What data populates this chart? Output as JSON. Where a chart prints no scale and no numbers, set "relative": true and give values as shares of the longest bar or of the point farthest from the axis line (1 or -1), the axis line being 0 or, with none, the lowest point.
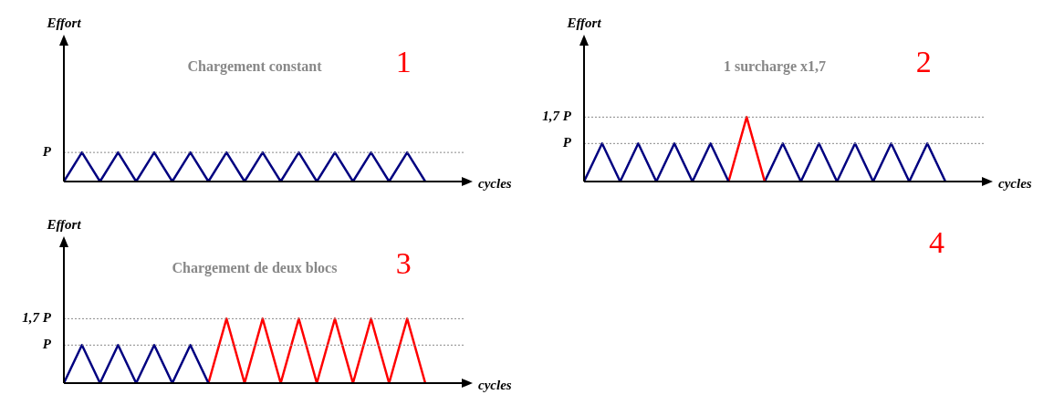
{
  "chart_data": [
    {
      "type": "line",
      "title": "Chargement constant",
      "xlabel": "cycles",
      "ylabel": "Effort",
      "annotations": [
        "1"
      ],
      "relative": true,
      "categories": [
        null,
        null,
        null,
        null,
        null,
        null,
        null,
        null,
        null,
        null,
        null,
        null,
        null,
        null,
        null,
        null,
        null,
        null,
        null,
        null,
        null
      ],
      "ref_lines": [
        {
          "axis": "y",
          "value": 1,
          "label": "P",
          "line_style": "dotted"
        }
      ],
      "legend": false,
      "series": [
        {
          "color": "#000080",
          "values": [
            0,
            1,
            0,
            1,
            0,
            1,
            0,
            1,
            0,
            1,
            0,
            1,
            0,
            1,
            0,
            1,
            0,
            1,
            0,
            1,
            0
          ]
        }
      ]
    },
    {
      "type": "line",
      "title": "1 surcharge x1,7",
      "xlabel": "cycles",
      "ylabel": "Effort",
      "annotations": [
        "2"
      ],
      "relative": true,
      "categories": [
        null,
        null,
        null,
        null,
        null,
        null,
        null,
        null,
        null,
        null,
        null,
        null,
        null,
        null,
        null,
        null,
        null,
        null,
        null,
        null,
        null
      ],
      "ref_lines": [
        {
          "axis": "y",
          "value": 0.59,
          "label": "P",
          "line_style": "dotted"
        },
        {
          "axis": "y",
          "value": 1,
          "label": "1,7 P",
          "line_style": "dotted"
        }
      ],
      "legend": false,
      "series": [
        {
          "color": "#000080",
          "values": [
            0,
            0.59,
            0,
            0.59,
            0,
            0.59,
            0,
            0.59,
            0,
            null,
            null,
            null,
            null,
            null,
            null,
            null,
            null,
            null,
            null,
            null,
            null
          ]
        },
        {
          "color": "#ff0000",
          "values": [
            null,
            null,
            null,
            null,
            null,
            null,
            null,
            null,
            0,
            1,
            0,
            null,
            null,
            null,
            null,
            null,
            null,
            null,
            null,
            null,
            null
          ]
        },
        {
          "color": "#000080",
          "values": [
            null,
            null,
            null,
            null,
            null,
            null,
            null,
            null,
            null,
            null,
            0,
            0.59,
            0,
            0.59,
            0,
            0.59,
            0,
            0.59,
            0,
            0.59,
            0
          ]
        }
      ]
    },
    {
      "type": "line",
      "title": "Chargement de deux blocs",
      "xlabel": "cycles",
      "ylabel": "Effort",
      "annotations": [
        "3"
      ],
      "relative": true,
      "categories": [
        null,
        null,
        null,
        null,
        null,
        null,
        null,
        null,
        null,
        null,
        null,
        null,
        null,
        null,
        null,
        null,
        null,
        null,
        null,
        null,
        null
      ],
      "ref_lines": [
        {
          "axis": "y",
          "value": 0.59,
          "label": "P",
          "line_style": "dotted"
        },
        {
          "axis": "y",
          "value": 1,
          "label": "1,7 P",
          "line_style": "dotted"
        }
      ],
      "legend": false,
      "series": [
        {
          "color": "#000080",
          "values": [
            0,
            0.59,
            0,
            0.59,
            0,
            0.59,
            0,
            0.59,
            0,
            null,
            null,
            null,
            null,
            null,
            null,
            null,
            null,
            null,
            null,
            null,
            null
          ]
        },
        {
          "color": "#ff0000",
          "values": [
            null,
            null,
            null,
            null,
            null,
            null,
            null,
            null,
            0,
            1,
            0,
            1,
            0,
            1,
            0,
            1,
            0,
            1,
            0,
            1,
            0
          ]
        }
      ]
    },
    {
      "type": "other",
      "annotations": [
        "4"
      ]
    }
  ]
}
